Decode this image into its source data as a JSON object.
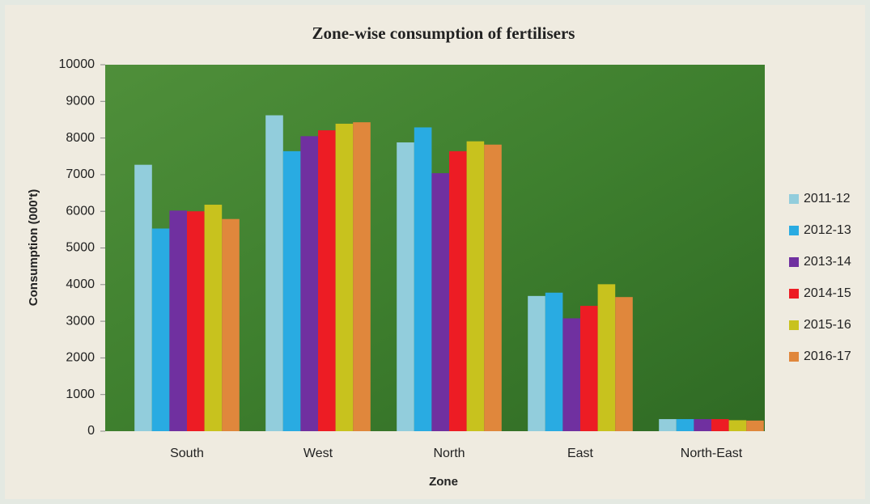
{
  "chart_data": {
    "type": "bar",
    "title": "Zone-wise consumption of fertilisers",
    "x_label": "Zone",
    "y_label": "Consumption (000't)",
    "categories": [
      "South",
      "West",
      "North",
      "East",
      "North-East"
    ],
    "series": [
      {
        "name": "2011-12",
        "color": "#92cddc",
        "values": [
          7270,
          8620,
          7880,
          3690,
          330
        ]
      },
      {
        "name": "2012-13",
        "color": "#29abe2",
        "values": [
          5530,
          7640,
          8290,
          3780,
          330
        ]
      },
      {
        "name": "2013-14",
        "color": "#7030a0",
        "values": [
          6020,
          8050,
          7040,
          3080,
          330
        ]
      },
      {
        "name": "2014-15",
        "color": "#ed1c24",
        "values": [
          6000,
          8210,
          7640,
          3420,
          330
        ]
      },
      {
        "name": "2015-16",
        "color": "#c8c21e",
        "values": [
          6180,
          8390,
          7910,
          4010,
          300
        ]
      },
      {
        "name": "2016-17",
        "color": "#e0873c",
        "values": [
          5790,
          8430,
          7820,
          3660,
          290
        ]
      }
    ],
    "ylim": [
      0,
      10000
    ],
    "yticks": [
      0,
      1000,
      2000,
      3000,
      4000,
      5000,
      6000,
      7000,
      8000,
      9000,
      10000
    ],
    "legend": "right"
  }
}
